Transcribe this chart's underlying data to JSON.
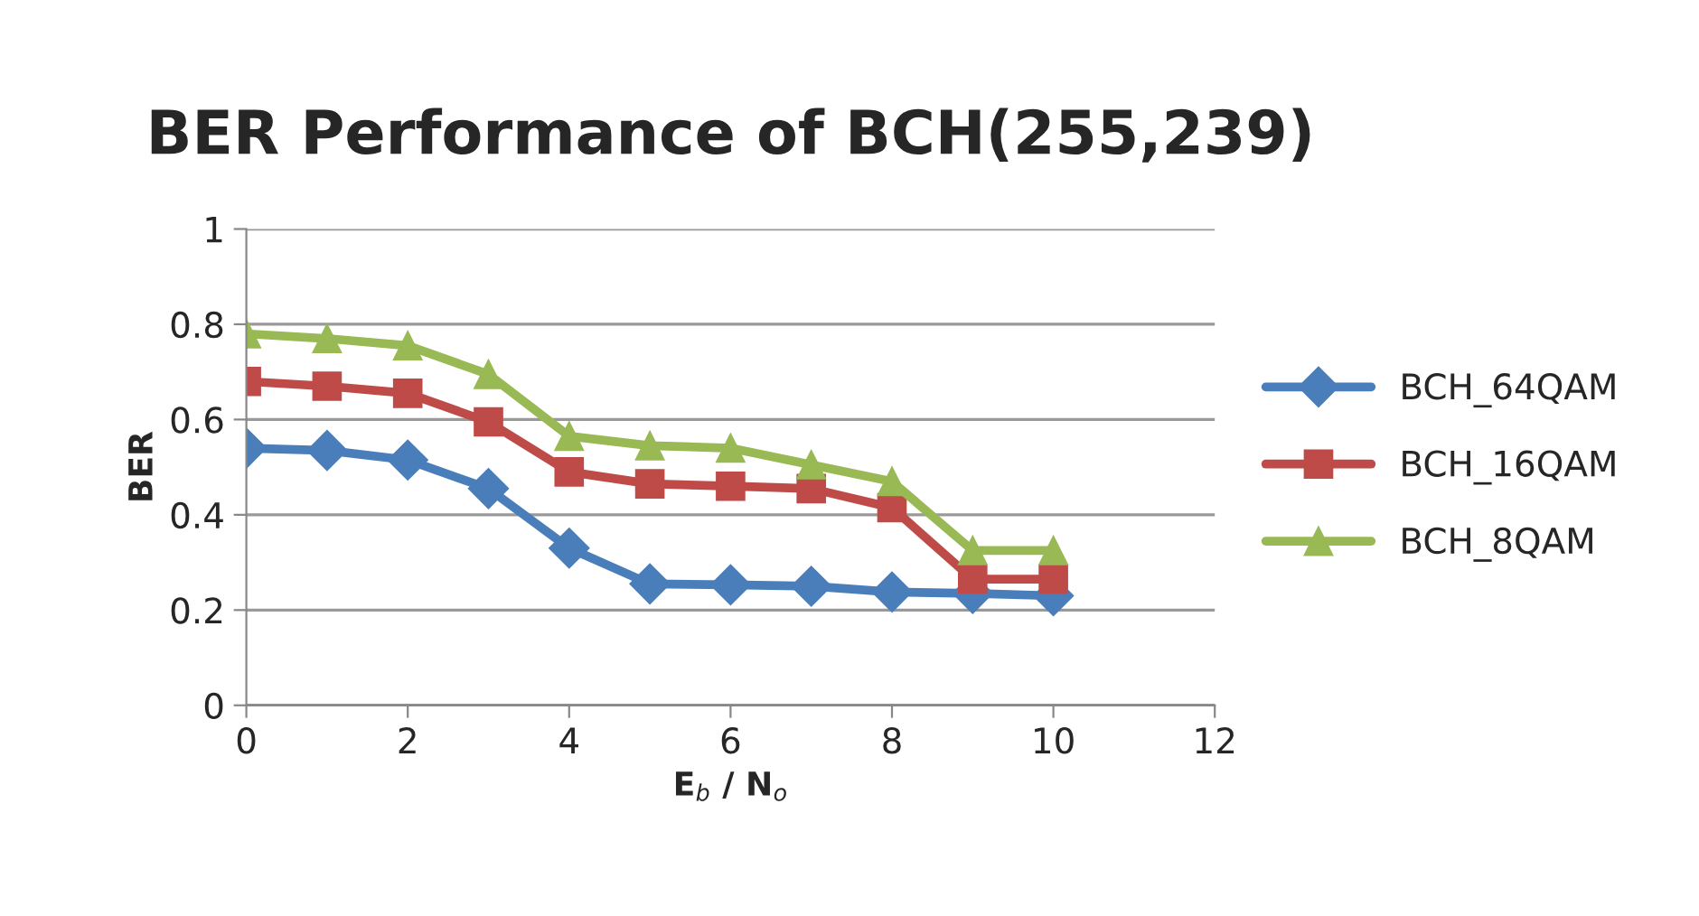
{
  "chart_data": {
    "type": "line",
    "title": "BER Performance of BCH(255,239)",
    "xlabel": "E$_{b}$ / N$_{o}$",
    "ylabel": "BER",
    "x": [
      0,
      1,
      2,
      3,
      4,
      5,
      6,
      7,
      8,
      9,
      10
    ],
    "series": [
      {
        "name": "BCH_64QAM",
        "color": "#4a7ebb",
        "marker": "diamond",
        "values": [
          0.54,
          0.535,
          0.515,
          0.455,
          0.33,
          0.255,
          0.253,
          0.25,
          0.238,
          0.235,
          0.23
        ]
      },
      {
        "name": "BCH_16QAM",
        "color": "#be4b48",
        "marker": "square",
        "values": [
          0.68,
          0.67,
          0.655,
          0.595,
          0.49,
          0.465,
          0.46,
          0.455,
          0.415,
          0.265,
          0.265
        ]
      },
      {
        "name": "BCH_8QAM",
        "color": "#98b954",
        "marker": "triangle",
        "values": [
          0.78,
          0.77,
          0.755,
          0.695,
          0.565,
          0.545,
          0.54,
          0.505,
          0.47,
          0.325,
          0.325
        ]
      }
    ],
    "xlim": [
      0,
      12
    ],
    "xticks": [
      0,
      2,
      4,
      6,
      8,
      10,
      12
    ],
    "ylim": [
      0,
      1
    ],
    "yticks": [
      0,
      0.2,
      0.4,
      0.6,
      0.8,
      1
    ],
    "grid": "y",
    "legend": "right",
    "line_style": "solid"
  }
}
